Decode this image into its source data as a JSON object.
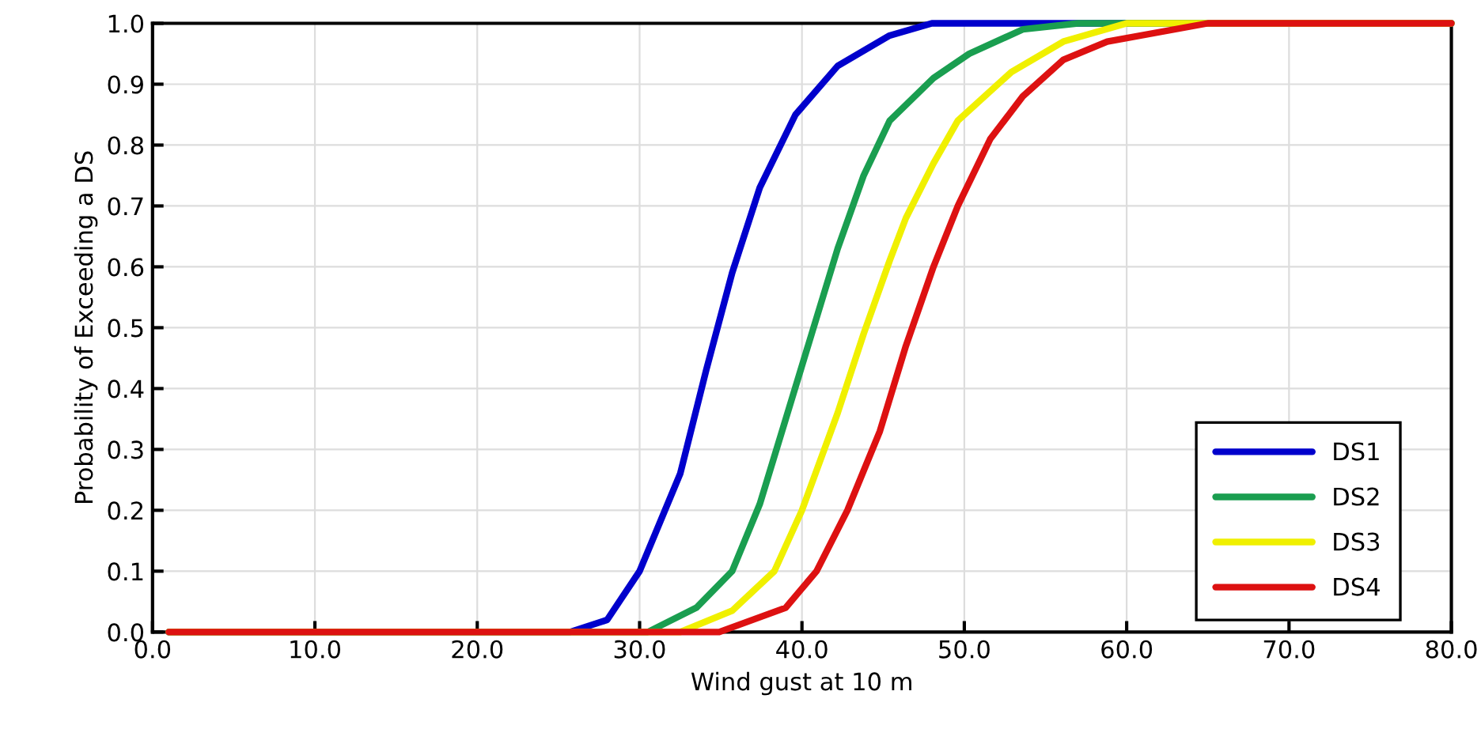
{
  "chart_data": {
    "type": "line",
    "xlabel": "Wind gust at 10 m",
    "ylabel": "Probability of Exceeding a DS",
    "xlim": [
      0,
      80
    ],
    "ylim": [
      0,
      1
    ],
    "xticks": [
      {
        "value": 0,
        "label": "0.0"
      },
      {
        "value": 10,
        "label": "10.0"
      },
      {
        "value": 20,
        "label": "20.0"
      },
      {
        "value": 30,
        "label": "30.0"
      },
      {
        "value": 40,
        "label": "40.0"
      },
      {
        "value": 50,
        "label": "50.0"
      },
      {
        "value": 60,
        "label": "60.0"
      },
      {
        "value": 70,
        "label": "70.0"
      },
      {
        "value": 80,
        "label": "80.0"
      }
    ],
    "yticks": [
      {
        "value": 0,
        "label": "0.0"
      },
      {
        "value": 0.1,
        "label": "0.1"
      },
      {
        "value": 0.2,
        "label": "0.2"
      },
      {
        "value": 0.3,
        "label": "0.3"
      },
      {
        "value": 0.4,
        "label": "0.4"
      },
      {
        "value": 0.5,
        "label": "0.5"
      },
      {
        "value": 0.6,
        "label": "0.6"
      },
      {
        "value": 0.7,
        "label": "0.7"
      },
      {
        "value": 0.8,
        "label": "0.8"
      },
      {
        "value": 0.9,
        "label": "0.9"
      },
      {
        "value": 1.0,
        "label": "1.0"
      }
    ],
    "grid": true,
    "legend": "bottom right",
    "marker": "none",
    "line_style": "solid",
    "series": [
      {
        "name": "DS1",
        "color": "#0000cc",
        "x": [
          1,
          25.7,
          28,
          30,
          32.5,
          34.1,
          35.7,
          37.4,
          39.6,
          42.2,
          45.4,
          48,
          80
        ],
        "values": [
          0,
          0,
          0.02,
          0.1,
          0.26,
          0.43,
          0.59,
          0.73,
          0.85,
          0.93,
          0.98,
          1,
          1
        ]
      },
      {
        "name": "DS2",
        "color": "#1a9e50",
        "x": [
          1,
          30.5,
          33.5,
          35.7,
          37.4,
          39,
          40.6,
          42.2,
          43.8,
          45.4,
          48.1,
          50.3,
          53.6,
          57,
          80
        ],
        "values": [
          0,
          0,
          0.04,
          0.1,
          0.21,
          0.35,
          0.49,
          0.63,
          0.75,
          0.84,
          0.91,
          0.95,
          0.99,
          1,
          1
        ]
      },
      {
        "name": "DS3",
        "color": "#f0f000",
        "x": [
          1,
          32.5,
          35.7,
          38.3,
          40,
          42.2,
          43.8,
          45.4,
          46.4,
          48.1,
          49.6,
          52.9,
          56.1,
          60,
          80
        ],
        "values": [
          0,
          0,
          0.035,
          0.1,
          0.2,
          0.36,
          0.49,
          0.61,
          0.68,
          0.77,
          0.84,
          0.92,
          0.97,
          1,
          1
        ]
      },
      {
        "name": "DS4",
        "color": "#dd1111",
        "x": [
          1,
          34.9,
          39,
          40.9,
          42.8,
          44.8,
          46.4,
          48.1,
          49.6,
          51.6,
          53.6,
          56.1,
          58.8,
          65,
          80
        ],
        "values": [
          0,
          0,
          0.04,
          0.1,
          0.2,
          0.33,
          0.47,
          0.6,
          0.7,
          0.81,
          0.88,
          0.94,
          0.97,
          1,
          1
        ]
      }
    ]
  }
}
